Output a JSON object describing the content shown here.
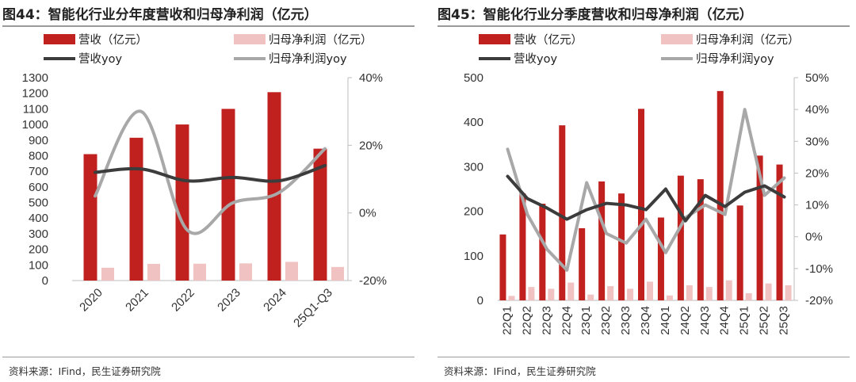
{
  "colors": {
    "revenue_bar": "#c0201e",
    "profit_bar": "#f0c3c2",
    "revenue_yoy": "#3c3c3c",
    "profit_yoy": "#a8a8a8"
  },
  "chart_data": [
    {
      "type": "bar",
      "title": "图44：智能化行业分年度营收和归母净利润（亿元）",
      "source": "资料来源：IFind，民生证券研究院",
      "categories": [
        "2020",
        "2021",
        "2022",
        "2023",
        "2024",
        "25Q1-Q3"
      ],
      "series": [
        {
          "name": "营收（亿元）",
          "kind": "bar",
          "axis": "left",
          "values": [
            810,
            915,
            1000,
            1100,
            1207,
            845
          ]
        },
        {
          "name": "归母净利润（亿元）",
          "kind": "bar",
          "axis": "left",
          "values": [
            82,
            107,
            108,
            110,
            120,
            87
          ]
        },
        {
          "name": "营收yoy",
          "kind": "line",
          "axis": "right",
          "values": [
            0.12,
            0.13,
            0.095,
            0.105,
            0.095,
            0.14
          ]
        },
        {
          "name": "归母净利润yoy",
          "kind": "line",
          "axis": "right",
          "values": [
            0.05,
            0.3,
            -0.05,
            0.03,
            0.06,
            0.19
          ]
        }
      ],
      "left_axis": {
        "min": 0,
        "max": 1300,
        "ticks": [
          0,
          100,
          200,
          300,
          400,
          500,
          600,
          700,
          800,
          900,
          1000,
          1100,
          1200,
          1300
        ]
      },
      "right_axis": {
        "min": -0.2,
        "max": 0.4,
        "ticks": [
          -0.2,
          0,
          0.2,
          0.4
        ],
        "tick_labels": [
          "-20%",
          "0%",
          "20%",
          "40%"
        ]
      },
      "legend": {
        "position": "top",
        "labels": [
          "营收（亿元）",
          "归母净利润（亿元）",
          "营收yoy",
          "归母净利润yoy"
        ]
      }
    },
    {
      "type": "bar",
      "title": "图45：智能化行业分季度营收和归母净利润（亿元）",
      "source": "资料来源：IFind，民生证券研究院",
      "categories": [
        "22Q1",
        "22Q2",
        "22Q3",
        "22Q4",
        "23Q1",
        "23Q2",
        "23Q3",
        "23Q4",
        "24Q1",
        "24Q2",
        "24Q3",
        "24Q4",
        "25Q1",
        "25Q2",
        "25Q3"
      ],
      "series": [
        {
          "name": "营收（亿元）",
          "kind": "bar",
          "axis": "left",
          "values": [
            148,
            240,
            217,
            393,
            162,
            267,
            240,
            430,
            186,
            280,
            272,
            470,
            213,
            325,
            305
          ]
        },
        {
          "name": "归母净利润（亿元）",
          "kind": "bar",
          "axis": "left",
          "values": [
            10,
            30,
            26,
            40,
            13,
            32,
            26,
            42,
            11,
            34,
            30,
            45,
            16,
            38,
            34
          ]
        },
        {
          "name": "营收yoy",
          "kind": "line",
          "axis": "right",
          "values": [
            0.19,
            0.12,
            0.09,
            0.055,
            0.085,
            0.105,
            0.1,
            0.085,
            0.15,
            0.05,
            0.13,
            0.095,
            0.14,
            0.16,
            0.125
          ]
        },
        {
          "name": "归母净利润yoy",
          "kind": "line",
          "axis": "right",
          "values": [
            0.275,
            0.07,
            -0.04,
            -0.105,
            0.17,
            0.01,
            -0.02,
            0.055,
            -0.05,
            0.06,
            0.1,
            0.07,
            0.4,
            0.13,
            0.185
          ]
        }
      ],
      "left_axis": {
        "min": 0,
        "max": 500,
        "ticks": [
          0,
          100,
          200,
          300,
          400,
          500
        ]
      },
      "right_axis": {
        "min": -0.2,
        "max": 0.5,
        "ticks": [
          -0.2,
          -0.1,
          0,
          0.1,
          0.2,
          0.3,
          0.4,
          0.5
        ],
        "tick_labels": [
          "-20%",
          "-10%",
          "0%",
          "10%",
          "20%",
          "30%",
          "40%",
          "50%"
        ]
      },
      "legend": {
        "position": "top",
        "labels": [
          "营收（亿元）",
          "归母净利润（亿元）",
          "营收yoy",
          "归母净利润yoy"
        ]
      }
    }
  ]
}
